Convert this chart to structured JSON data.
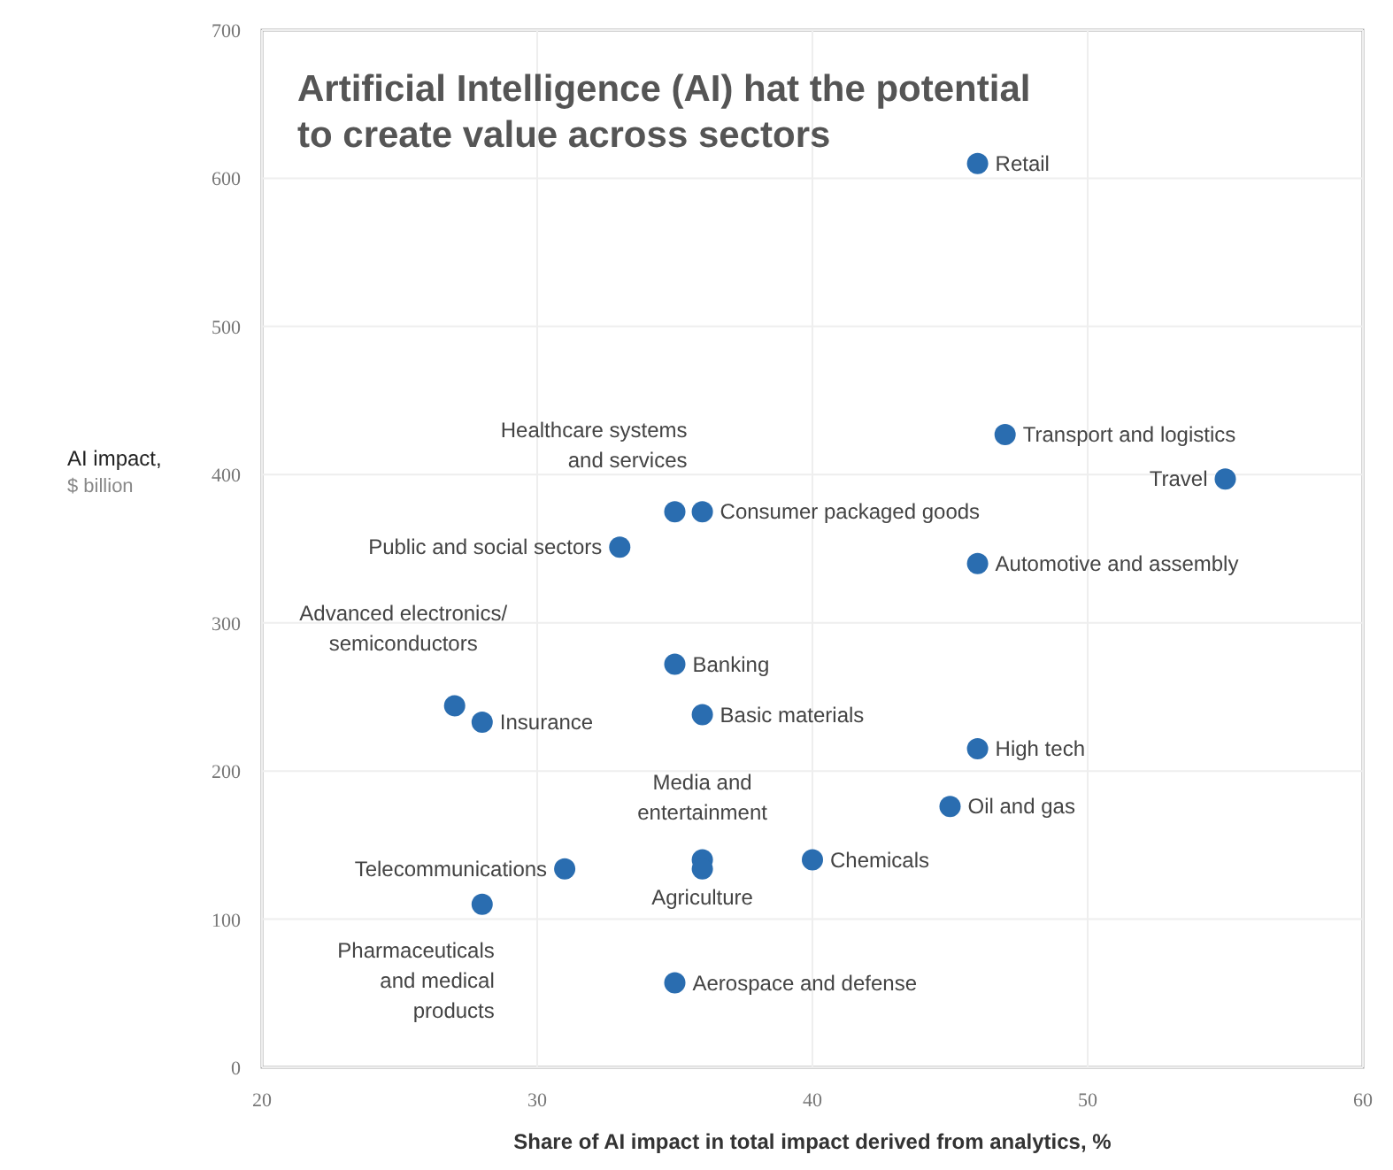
{
  "chart_data": {
    "type": "scatter",
    "title": "Artificial Intelligence (AI) hat the potential to create value across sectors",
    "xlabel": "Share of AI impact in total impact derived from analytics, %",
    "ylabel": "AI impact, $ billion",
    "x": [
      46,
      47,
      55,
      35,
      36,
      33,
      46,
      35,
      27,
      28,
      36,
      46,
      45,
      36,
      36,
      40,
      31,
      28,
      35
    ],
    "series": [
      {
        "color": "#2a6db0",
        "values": [
          610,
          427,
          397,
          375,
          375,
          351,
          340,
          272,
          244,
          233,
          238,
          215,
          176,
          140,
          134,
          140,
          134,
          110,
          57
        ]
      }
    ],
    "annotations": [
      {
        "text": "Retail",
        "x": 46,
        "y": 610
      },
      {
        "text": "Transport and logistics",
        "x": 47,
        "y": 427
      },
      {
        "text": "Travel",
        "x": 55,
        "y": 397
      },
      {
        "text": "Healthcare systems and services",
        "x": 35,
        "y": 375
      },
      {
        "text": "Consumer packaged goods",
        "x": 36,
        "y": 375
      },
      {
        "text": "Public and social sectors",
        "x": 33,
        "y": 351
      },
      {
        "text": "Automotive and assembly",
        "x": 46,
        "y": 340
      },
      {
        "text": "Banking",
        "x": 35,
        "y": 272
      },
      {
        "text": "Advanced electronics/ semiconductors",
        "x": 27,
        "y": 244
      },
      {
        "text": "Insurance",
        "x": 28,
        "y": 233
      },
      {
        "text": "Basic materials",
        "x": 36,
        "y": 238
      },
      {
        "text": "High tech",
        "x": 46,
        "y": 215
      },
      {
        "text": "Oil and gas",
        "x": 45,
        "y": 176
      },
      {
        "text": "Media and entertainment",
        "x": 36,
        "y": 140
      },
      {
        "text": "Agriculture",
        "x": 36,
        "y": 134
      },
      {
        "text": "Chemicals",
        "x": 40,
        "y": 140
      },
      {
        "text": "Telecommunications",
        "x": 31,
        "y": 134
      },
      {
        "text": "Pharmaceuticals and medical products",
        "x": 28,
        "y": 110
      },
      {
        "text": "Aerospace and defense",
        "x": 35,
        "y": 57
      }
    ],
    "xlim": [
      20,
      60
    ],
    "xticks": [
      20,
      30,
      40,
      50,
      60
    ],
    "ylim": [
      0,
      700
    ],
    "yticks": [
      0,
      100,
      200,
      300,
      400,
      500,
      600,
      700
    ],
    "grid": true,
    "marker": "circle"
  }
}
